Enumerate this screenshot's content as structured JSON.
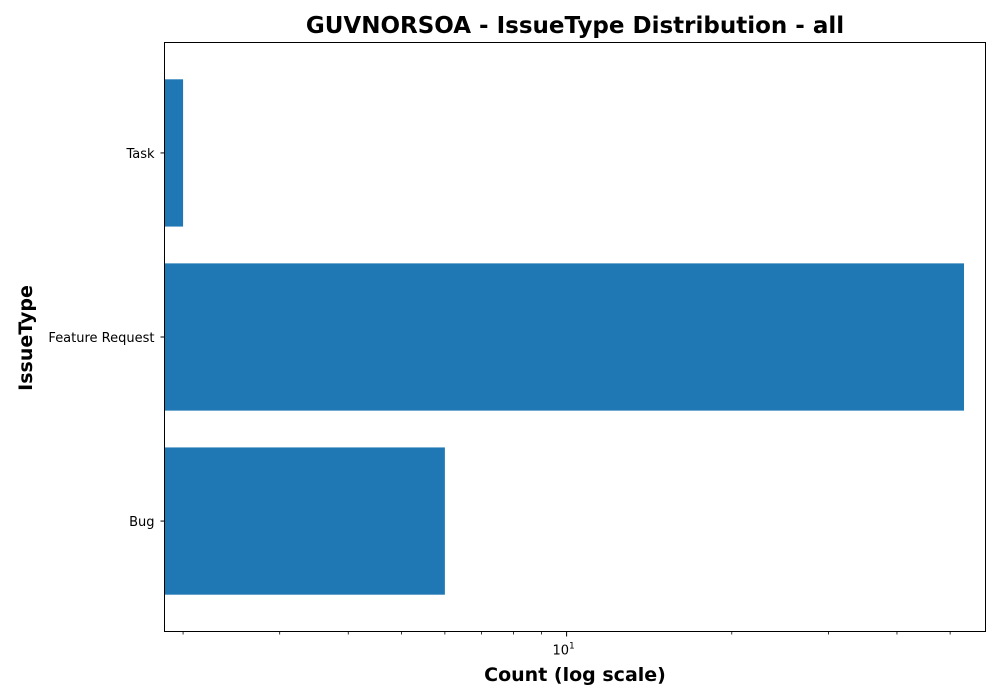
{
  "chart_data": {
    "type": "bar",
    "orientation": "horizontal",
    "title": "GUVNORSOA - IssueType Distribution - all",
    "xlabel": "Count (log scale)",
    "ylabel": "IssueType",
    "xscale": "log",
    "xlim": [
      1.85,
      58
    ],
    "categories": [
      "Bug",
      "Feature Request",
      "Task"
    ],
    "values": [
      6,
      53,
      2
    ],
    "x_ticks_major": [
      {
        "value": 10,
        "base": "10",
        "exp": "1"
      }
    ],
    "x_ticks_minor": [
      2,
      3,
      4,
      5,
      6,
      7,
      8,
      9,
      20,
      30,
      40,
      50
    ],
    "grid": false,
    "bar_color": "#1f77b4"
  }
}
